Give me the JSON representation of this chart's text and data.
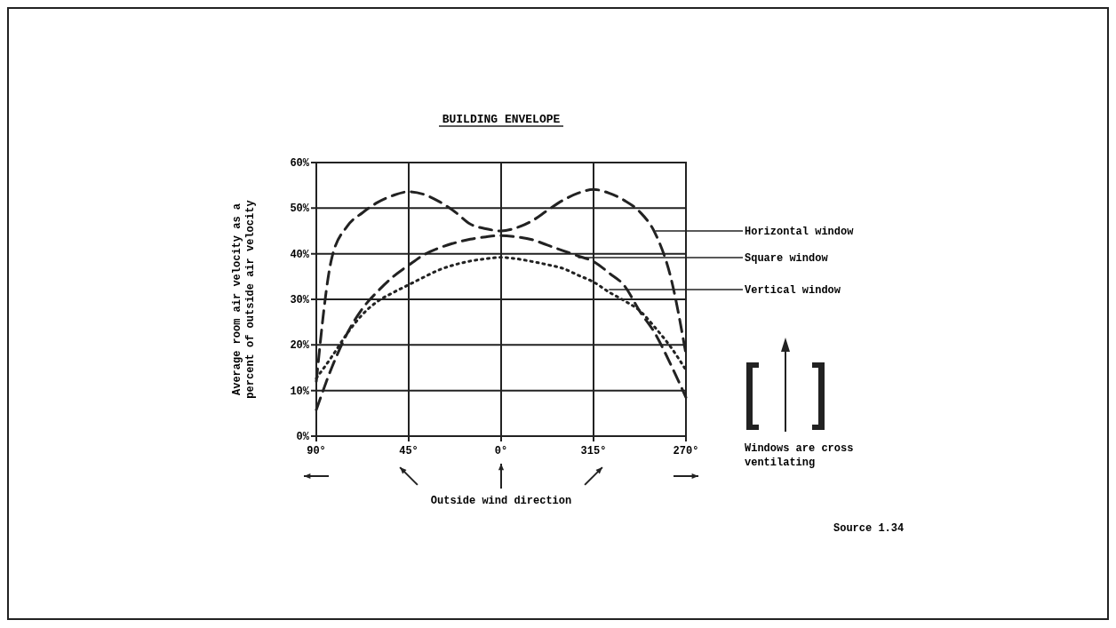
{
  "chart_data": {
    "type": "line",
    "title": "BUILDING ENVELOPE",
    "ylabel": "Average room air velocity as a\npercent of outside air velocity",
    "xlabel": "Outside wind direction",
    "categories": [
      "90°",
      null,
      null,
      null,
      null,
      null,
      "45°",
      null,
      null,
      null,
      null,
      null,
      "0°",
      null,
      null,
      null,
      null,
      null,
      "315°",
      null,
      null,
      null,
      null,
      null,
      "270°"
    ],
    "ylim": [
      0,
      60
    ],
    "yticks": [
      {
        "value": 0,
        "label": "0%"
      },
      {
        "value": 10,
        "label": "10%"
      },
      {
        "value": 20,
        "label": "20%"
      },
      {
        "value": 30,
        "label": "30%"
      },
      {
        "value": 40,
        "label": "40%"
      },
      {
        "value": 50,
        "label": "50%"
      },
      {
        "value": 60,
        "label": "60%"
      }
    ],
    "grid": true,
    "legend": false,
    "series": [
      {
        "name": "Horizontal window",
        "color": "#222222",
        "line_style": "dashed",
        "values": [
          12,
          39,
          46,
          49,
          51.3,
          52.8,
          53.6,
          53,
          51.4,
          49.2,
          46.5,
          45.5,
          45,
          45.7,
          47.2,
          49.5,
          51.7,
          53.3,
          54.1,
          53.3,
          51.7,
          49.2,
          44.5,
          35,
          18
        ]
      },
      {
        "name": "Square window",
        "color": "#222222",
        "line_style": "dashed",
        "values": [
          5.8,
          15,
          22.5,
          28,
          31.8,
          35,
          37.5,
          39.8,
          41.3,
          42.4,
          43.2,
          43.7,
          44,
          43.7,
          43.1,
          41.9,
          40.7,
          39.5,
          38.3,
          35.8,
          33,
          27.4,
          22.5,
          15.8,
          8.5
        ]
      },
      {
        "name": "Vertical window",
        "color": "#222222",
        "line_style": "dotted",
        "values": [
          12.7,
          17.4,
          22.5,
          26.7,
          29.6,
          31.5,
          33.2,
          34.9,
          36.5,
          37.6,
          38.4,
          38.9,
          39.2,
          38.9,
          38.3,
          37.6,
          36.8,
          35.3,
          33.8,
          31.6,
          29.7,
          27.5,
          23.8,
          19.6,
          14.5
        ]
      }
    ],
    "annotations": [
      "Windows are cross ventilating",
      "Source 1.34"
    ]
  }
}
